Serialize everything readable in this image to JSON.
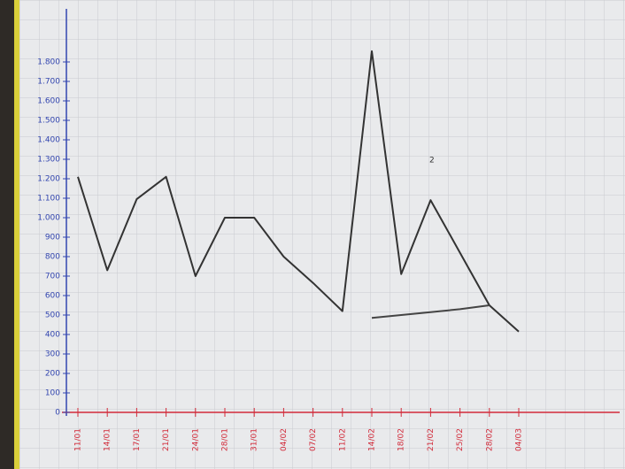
{
  "chart_data": {
    "type": "line",
    "categories": [
      "11/01",
      "14/01",
      "17/01",
      "21/01",
      "24/01",
      "28/01",
      "31/01",
      "04/02",
      "07/02",
      "11/02",
      "14/02",
      "18/02",
      "21/02",
      "25/02",
      "28/02",
      "04/03"
    ],
    "series": [
      {
        "color": "#333333",
        "values": [
          1210,
          730,
          1095,
          1210,
          700,
          1000,
          1000,
          800,
          665,
          520,
          1855,
          710,
          1090,
          820,
          550,
          415
        ]
      },
      {
        "color": "#444444",
        "values": [
          null,
          null,
          null,
          null,
          null,
          null,
          null,
          null,
          null,
          null,
          485,
          500,
          515,
          530,
          550,
          null
        ]
      }
    ],
    "ylim": [
      0,
      1900
    ],
    "yticks": [
      0,
      100,
      200,
      300,
      400,
      500,
      600,
      700,
      800,
      900,
      {
        "value": 1000,
        "label": "1.000"
      },
      {
        "value": 1100,
        "label": "1.100"
      },
      {
        "value": 1200,
        "label": "1.200"
      },
      {
        "value": 1300,
        "label": "1.300"
      },
      {
        "value": 1400,
        "label": "1.400"
      },
      {
        "value": 1500,
        "label": "1.500"
      },
      {
        "value": 1600,
        "label": "1.600"
      },
      {
        "value": 1700,
        "label": "1.700"
      },
      {
        "value": 1800,
        "label": "1.800"
      }
    ],
    "grid": true,
    "annotations": [
      "2"
    ]
  }
}
